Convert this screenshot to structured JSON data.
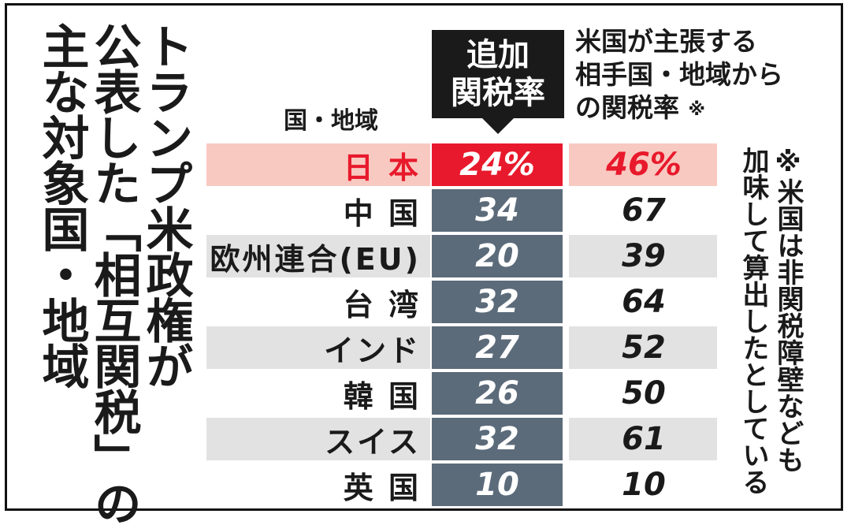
{
  "title_lines": [
    "トランプ米政権が",
    "公表した「相互関税」の",
    "主な対象国・地域"
  ],
  "headers": {
    "country": "国・地域",
    "rate": "追加\n関税率",
    "us_claim": "米国が主張する\n相手国・地域から\nの関税率",
    "us_claim_mark": "※"
  },
  "note": "※米国は非関税障壁なども\n加味して算出したとしている",
  "colors": {
    "highlight_row_bg": "#f8c9c0",
    "highlight_rate_bg": "#e8192c",
    "highlight_text": "#e8192c",
    "rate_bg": "#5c6b7a",
    "stripe_bg": "#e2e2e2"
  },
  "chart_data": {
    "type": "table",
    "columns": [
      "国・地域",
      "追加関税率",
      "米国が主張する相手国・地域からの関税率"
    ],
    "rows": [
      {
        "country": "日 本",
        "rate": "24%",
        "us_rate": "46%",
        "highlight": true
      },
      {
        "country": "中 国",
        "rate": "34",
        "us_rate": "67",
        "highlight": false
      },
      {
        "country": "欧州連合(EU)",
        "rate": "20",
        "us_rate": "39",
        "highlight": false
      },
      {
        "country": "台 湾",
        "rate": "32",
        "us_rate": "64",
        "highlight": false
      },
      {
        "country": "インド",
        "rate": "27",
        "us_rate": "52",
        "highlight": false
      },
      {
        "country": "韓 国",
        "rate": "26",
        "us_rate": "50",
        "highlight": false
      },
      {
        "country": "スイス",
        "rate": "32",
        "us_rate": "61",
        "highlight": false
      },
      {
        "country": "英 国",
        "rate": "10",
        "us_rate": "10",
        "highlight": false
      }
    ]
  }
}
